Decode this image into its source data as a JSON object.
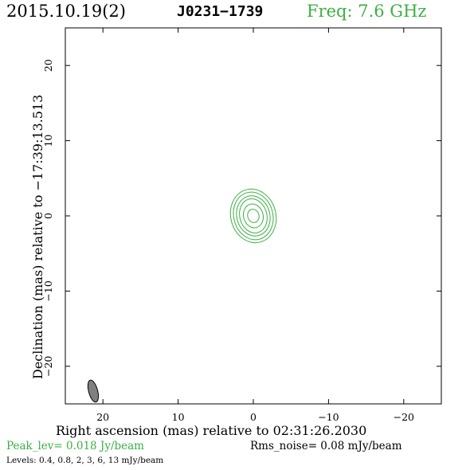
{
  "header": {
    "date": "2015.10.19(2)",
    "source": "J0231−1739",
    "freq": "Freq: 7.6 GHz"
  },
  "footer": {
    "peak": "Peak_lev=  0.018 Jy/beam",
    "rms": "Rms_noise= 0.08 mJy/beam",
    "levels": "Levels: 0.4, 0.8,   2,   3,   6,  13 mJy/beam"
  },
  "colors": {
    "contour": "#3cb043",
    "beam": "#808080",
    "freq_text": "#3cb043"
  },
  "chart_data": {
    "type": "contour",
    "xlabel": "Right ascension (mas) relative to 02:31:26.2030",
    "ylabel": "Declination (mas) relative to −17:39:13.513",
    "xlim": [
      25,
      -25
    ],
    "ylim": [
      -25,
      25
    ],
    "x_ticks": [
      20,
      10,
      0,
      -10,
      -20
    ],
    "y_ticks": [
      20,
      10,
      0,
      -10,
      -20
    ],
    "x_tick_labels": [
      "20",
      "10",
      "0",
      "−10",
      "−20"
    ],
    "y_tick_labels": [
      "20",
      "10",
      "0",
      "−10",
      "−20"
    ],
    "contour_levels_mJy": [
      0.4,
      0.8,
      2,
      3,
      6,
      13
    ],
    "source_center": [
      0,
      0
    ],
    "contours": [
      {
        "level": 0.4,
        "major": 7.2,
        "minor": 3.0
      },
      {
        "level": 0.8,
        "major": 6.4,
        "minor": 2.6
      },
      {
        "level": 2,
        "major": 5.4,
        "minor": 2.2
      },
      {
        "level": 3,
        "major": 4.6,
        "minor": 1.8
      },
      {
        "level": 6,
        "major": 3.2,
        "minor": 1.3
      },
      {
        "level": 13,
        "major": 1.8,
        "minor": 0.75
      }
    ],
    "position_angle_deg": 15,
    "beam": {
      "center": [
        21.3,
        -23.3
      ],
      "major": 3.0,
      "minor": 1.2,
      "pa_deg": 15
    }
  }
}
